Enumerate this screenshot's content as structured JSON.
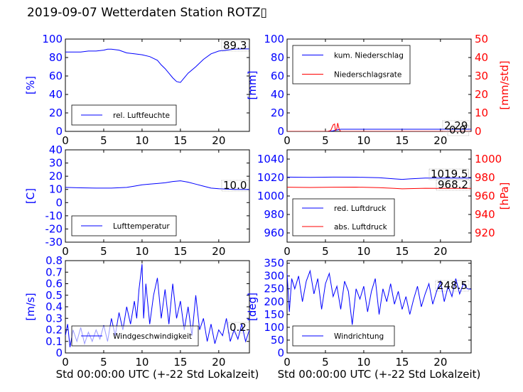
{
  "figure_title": "2019-09-07 Wetterdaten Station ROTZ▯",
  "x_axis_label": "Std 00:00:00 UTC (+-22 Std Lokalzeit)",
  "colors": {
    "blue": "#0000ff",
    "red": "#ff0000"
  },
  "chart_data": [
    {
      "type": "line",
      "ylabel": "[%]",
      "xlim": [
        0,
        24
      ],
      "ylim": [
        0,
        100
      ],
      "xticks": [
        0,
        5,
        10,
        15,
        20
      ],
      "yticks": [
        0,
        20,
        40,
        60,
        80,
        100
      ],
      "legend": {
        "placement": "lower-left",
        "entries": [
          "rel. Luftfeuchte"
        ]
      },
      "annotation": "89.3",
      "series": [
        {
          "name": "rel. Luftfeuchte",
          "color": "#0000ff",
          "x": [
            0,
            1,
            2,
            3,
            4,
            5,
            5.5,
            6,
            7,
            8,
            9,
            10,
            11,
            12,
            12.5,
            13,
            13.5,
            14,
            14.5,
            15,
            15.5,
            16,
            17,
            18,
            19,
            20,
            21,
            22,
            23,
            24
          ],
          "y": [
            86,
            86,
            86,
            87,
            87,
            88,
            89,
            89,
            88,
            85,
            84,
            83,
            81,
            77,
            72,
            68,
            63,
            58,
            54,
            53,
            58,
            63,
            70,
            78,
            84,
            87,
            88,
            89,
            89.3,
            89.3
          ]
        }
      ]
    },
    {
      "type": "line",
      "ylabel": "[mm]",
      "ylabel_right": "[mm/std]",
      "xlim": [
        0,
        24
      ],
      "ylim": [
        0,
        100
      ],
      "ylim_right": [
        0,
        50
      ],
      "xticks": [
        0,
        5,
        10,
        15,
        20
      ],
      "yticks": [
        0,
        20,
        40,
        60,
        80,
        100
      ],
      "yticks_right": [
        0,
        10,
        20,
        30,
        40,
        50
      ],
      "legend": {
        "placement": "top-left",
        "entries": [
          "kum. Niederschlag",
          "Niederschlagsrate"
        ]
      },
      "annotations": [
        "2.29",
        "0.0"
      ],
      "series": [
        {
          "name": "kum. Niederschlag",
          "color": "#0000ff",
          "axis": "left",
          "x": [
            0,
            5.5,
            6,
            6.3,
            6.6,
            7,
            10,
            15,
            20,
            24
          ],
          "y": [
            0,
            0,
            0.6,
            1.2,
            1.8,
            2.29,
            2.29,
            2.29,
            2.29,
            2.29
          ]
        },
        {
          "name": "Niederschlagsrate",
          "color": "#ff0000",
          "axis": "right",
          "x": [
            0,
            5.3,
            5.7,
            6.0,
            6.2,
            6.3,
            6.5,
            6.6,
            6.8,
            7.0,
            8,
            24
          ],
          "y": [
            0,
            0,
            0.5,
            3.5,
            4,
            0.5,
            1.5,
            4.5,
            1,
            0,
            0,
            0
          ]
        }
      ]
    },
    {
      "type": "line",
      "ylabel": "[C]",
      "xlim": [
        0,
        24
      ],
      "ylim": [
        -30,
        40
      ],
      "xticks": [
        0,
        5,
        10,
        15,
        20
      ],
      "yticks": [
        -30,
        -20,
        -10,
        0,
        10,
        20,
        30,
        40
      ],
      "legend": {
        "placement": "lower-left",
        "entries": [
          "Lufttemperatur"
        ]
      },
      "annotation": "10.0",
      "series": [
        {
          "name": "Lufttemperatur",
          "color": "#0000ff",
          "x": [
            0,
            2,
            4,
            6,
            8,
            9,
            10,
            11,
            12,
            13,
            14,
            15,
            16,
            17,
            18,
            19,
            20,
            21,
            22,
            23,
            24
          ],
          "y": [
            11.5,
            11.2,
            11,
            11,
            11.5,
            12.5,
            13.5,
            14,
            14.5,
            15,
            16,
            16.5,
            15.5,
            14,
            12.5,
            11,
            10.5,
            10.2,
            10,
            10,
            10
          ]
        }
      ]
    },
    {
      "type": "line",
      "ylabel": "",
      "ylabel_right": "[hPa]",
      "xlim": [
        0,
        24
      ],
      "ylim": [
        950,
        1050
      ],
      "ylim_right": [
        910,
        1010
      ],
      "xticks": [
        0,
        5,
        10,
        15,
        20
      ],
      "yticks": [
        960,
        980,
        1000,
        1020,
        1040
      ],
      "yticks_right": [
        920,
        940,
        960,
        980,
        1000
      ],
      "legend": {
        "placement": "lower-left",
        "entries": [
          "red. Luftdruck",
          "abs. Luftdruck"
        ]
      },
      "annotations": [
        "1019.5",
        "968.2"
      ],
      "series": [
        {
          "name": "red. Luftdruck",
          "color": "#0000ff",
          "axis": "left",
          "x": [
            0,
            3,
            6,
            9,
            12,
            14,
            15,
            16,
            18,
            20,
            22,
            24
          ],
          "y": [
            1020.5,
            1020.2,
            1020.5,
            1020.4,
            1019.8,
            1018.5,
            1018,
            1018.5,
            1019.5,
            1019.5,
            1019.5,
            1019.5
          ]
        },
        {
          "name": "abs. Luftdruck",
          "color": "#ff0000",
          "axis": "right",
          "x": [
            0,
            3,
            6,
            9,
            12,
            14,
            15,
            16,
            18,
            20,
            22,
            24
          ],
          "y": [
            969.5,
            969.2,
            969.5,
            969.6,
            969,
            968.2,
            967.8,
            968,
            968.4,
            968.2,
            968.2,
            968.2
          ]
        }
      ]
    },
    {
      "type": "line",
      "ylabel": "[m/s]",
      "xlim": [
        0,
        24
      ],
      "ylim": [
        0,
        0.8
      ],
      "xticks": [
        0,
        5,
        10,
        15,
        20
      ],
      "yticks": [
        0.0,
        0.1,
        0.2,
        0.3,
        0.4,
        0.5,
        0.6,
        0.7,
        0.8
      ],
      "legend": {
        "placement": "lower-left",
        "entries": [
          "Windgeschwindigkeit"
        ]
      },
      "annotation": "0.2",
      "series": [
        {
          "name": "Windgeschwindigkeit",
          "color": "#0000ff",
          "x": [
            0,
            0.3,
            0.6,
            1,
            1.5,
            2,
            2.5,
            3,
            3.5,
            4,
            4.5,
            5,
            5.5,
            6,
            6.5,
            7,
            7.5,
            8,
            8.5,
            9,
            9.3,
            9.6,
            10,
            10.2,
            10.5,
            11,
            11.5,
            12,
            12.5,
            13,
            13.5,
            14,
            14.5,
            15,
            15.5,
            16,
            16.5,
            17,
            17.5,
            18,
            18.5,
            19,
            19.5,
            20,
            20.5,
            21,
            21.5,
            22,
            22.5,
            23,
            23.5,
            24
          ],
          "y": [
            0.15,
            0.25,
            0.05,
            0.2,
            0.1,
            0.22,
            0.08,
            0.18,
            0.1,
            0.2,
            0.12,
            0.24,
            0.1,
            0.3,
            0.15,
            0.35,
            0.2,
            0.4,
            0.25,
            0.45,
            0.3,
            0.55,
            0.77,
            0.3,
            0.6,
            0.25,
            0.5,
            0.65,
            0.3,
            0.55,
            0.25,
            0.6,
            0.3,
            0.45,
            0.2,
            0.4,
            0.15,
            0.5,
            0.2,
            0.3,
            0.1,
            0.25,
            0.08,
            0.2,
            0.15,
            0.3,
            0.1,
            0.2,
            0.12,
            0.25,
            0.1,
            0.2
          ]
        }
      ]
    },
    {
      "type": "line",
      "ylabel": "[deg]",
      "xlim": [
        0,
        24
      ],
      "ylim": [
        0,
        360
      ],
      "xticks": [
        0,
        5,
        10,
        15,
        20
      ],
      "yticks": [
        0,
        50,
        100,
        150,
        200,
        250,
        300,
        350
      ],
      "legend": {
        "placement": "lower-left",
        "entries": [
          "Windrichtung"
        ]
      },
      "annotation": "248.5",
      "series": [
        {
          "name": "Windrichtung",
          "color": "#0000ff",
          "x": [
            0,
            0.3,
            0.6,
            1,
            1.5,
            2,
            2.5,
            3,
            3.5,
            4,
            4.5,
            5,
            5.5,
            6,
            6.5,
            7,
            7.5,
            8,
            8.5,
            9,
            9.5,
            10,
            10.5,
            11,
            11.5,
            12,
            12.5,
            13,
            13.5,
            14,
            14.5,
            15,
            15.5,
            16,
            16.5,
            17,
            17.5,
            18,
            18.5,
            19,
            19.5,
            20,
            20.5,
            21,
            21.5,
            22,
            22.5,
            23,
            23.5,
            24
          ],
          "y": [
            310,
            160,
            290,
            250,
            300,
            200,
            280,
            320,
            230,
            290,
            170,
            270,
            310,
            220,
            260,
            170,
            280,
            240,
            110,
            250,
            210,
            260,
            160,
            240,
            290,
            150,
            250,
            200,
            270,
            190,
            240,
            170,
            220,
            150,
            210,
            260,
            180,
            230,
            270,
            190,
            240,
            280,
            200,
            260,
            220,
            290,
            230,
            270,
            250,
            248.5
          ]
        }
      ]
    }
  ]
}
